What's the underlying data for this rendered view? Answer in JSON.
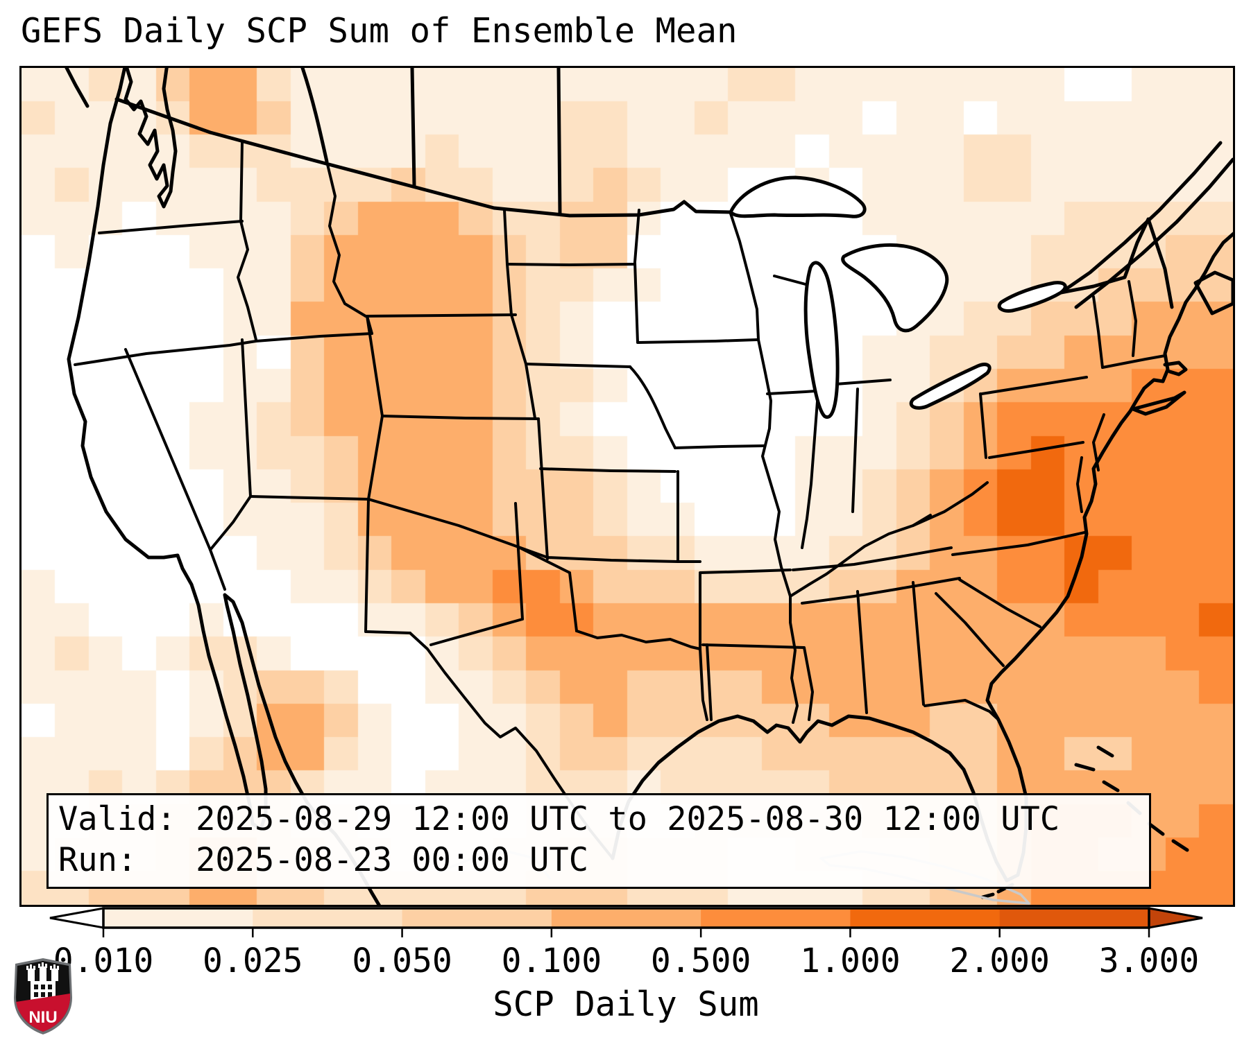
{
  "figure": {
    "title": "GEFS Daily SCP Sum of Ensemble Mean"
  },
  "info_box": {
    "line1": "Valid: 2025-08-29 12:00 UTC to 2025-08-30 12:00 UTC",
    "line2": "Run:   2025-08-23 00:00 UTC"
  },
  "colorbar": {
    "label": "SCP Daily Sum",
    "tick_labels": [
      "0.010",
      "0.025",
      "0.050",
      "0.100",
      "0.500",
      "1.000",
      "2.000",
      "3.000"
    ],
    "levels": [
      0.01,
      0.025,
      0.05,
      0.1,
      0.5,
      1.0,
      2.0,
      3.0
    ],
    "segment_colors": [
      "#fdf0e0",
      "#fde2c4",
      "#fdd0a4",
      "#fdae6b",
      "#fd8d3c",
      "#f1690e",
      "#e0580c"
    ],
    "under_color": "#ffffff",
    "over_color": "#c2440a"
  },
  "logo": {
    "text": "NIU",
    "red": "#c8102e"
  },
  "chart_data": {
    "type": "heatmap",
    "title": "GEFS Daily SCP Sum of Ensemble Mean",
    "parameter": "SCP Daily Sum",
    "valid_window": "2025-08-29 12:00 UTC to 2025-08-30 12:00 UTC",
    "run_time": "2025-08-23 00:00 UTC",
    "region": "CONUS with southern Canada, northern Mexico, Gulf of Mexico and western Atlantic",
    "colorbar_levels": [
      0.01,
      0.025,
      0.05,
      0.1,
      0.5,
      1.0,
      2.0,
      3.0
    ],
    "palette": [
      "#ffffff",
      "#fdf0e0",
      "#fde2c4",
      "#fdd0a4",
      "#fdae6b",
      "#fd8d3c",
      "#f1690e",
      "#e0580c",
      "#c2440a"
    ],
    "legend_position": "bottom horizontal colorbar with under/over arrows",
    "grid_encoding": "rows of 36 digit codes (0=<0.010 white, 1=0.010-0.025, 2=0.025-0.050, 3=0.050-0.100, 4=0.100-0.500, 5=0.500-1.000, 6=1.000-2.000), 25 rows top-to-bottom covering the map axes",
    "grid_rows": [
      "112134421111111111111221111111100111",
      "211124431111111122112111101101111111",
      "111112221111211122111110111122111111",
      "121111122223221123211001011122111111",
      "111011112344432233100000011111122222",
      "010001113444443233000000001111222233",
      "000000113444443221100000000111223333",
      "000000114444443210000000001122333444",
      "000000103444443210000000011223344444",
      "000000113444443221000000011234444555",
      "000001123444443210000000012345555555",
      "000001122344443221000001112345655555",
      "000000112344443332100001123456655555",
      "000000111244443332110001123456655555",
      "000000011234444333221111223445566555",
      "100000001123445543332222334445565555",
      "110001000011234554444444444444455556",
      "121012210000123444444444444444444455",
      "111101233200112344333344444444444445",
      "011101244310011234333333444334444444",
      "111102344210011233222233333334433444",
      "112123332110111222122222333334444444",
      "112233332211111222112222233334555445",
      "122234433221112233222112222334554455",
      "223334433222222333222111122334555555"
    ]
  }
}
